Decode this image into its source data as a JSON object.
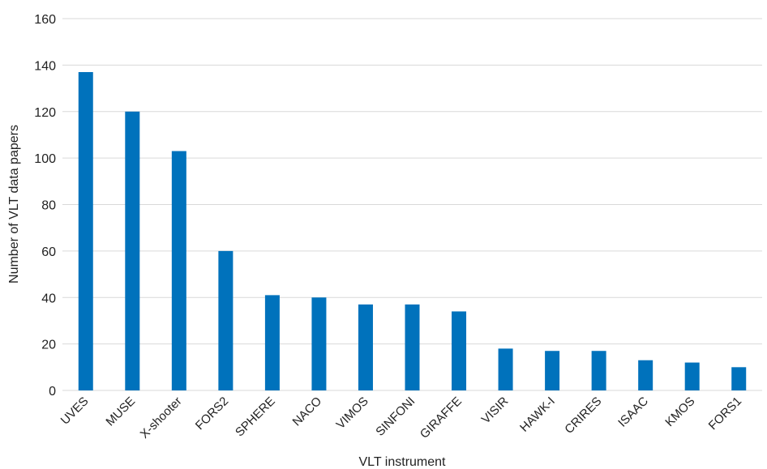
{
  "chart_data": {
    "type": "bar",
    "title": "",
    "xlabel": "VLT instrument",
    "ylabel": "Number of VLT data papers",
    "ylim": [
      0,
      160
    ],
    "yticks": [
      0,
      20,
      40,
      60,
      80,
      100,
      120,
      140,
      160
    ],
    "grid": true,
    "legend": "none",
    "bar_color": "#0072bc",
    "categories": [
      "UVES",
      "MUSE",
      "X-shooter",
      "FORS2",
      "SPHERE",
      "NACO",
      "VIMOS",
      "SINFONI",
      "GIRAFFE",
      "VISIR",
      "HAWK-I",
      "CRIRES",
      "ISAAC",
      "KMOS",
      "FORS1"
    ],
    "values": [
      137,
      120,
      103,
      60,
      41,
      40,
      37,
      37,
      34,
      18,
      17,
      17,
      13,
      12,
      10
    ]
  }
}
